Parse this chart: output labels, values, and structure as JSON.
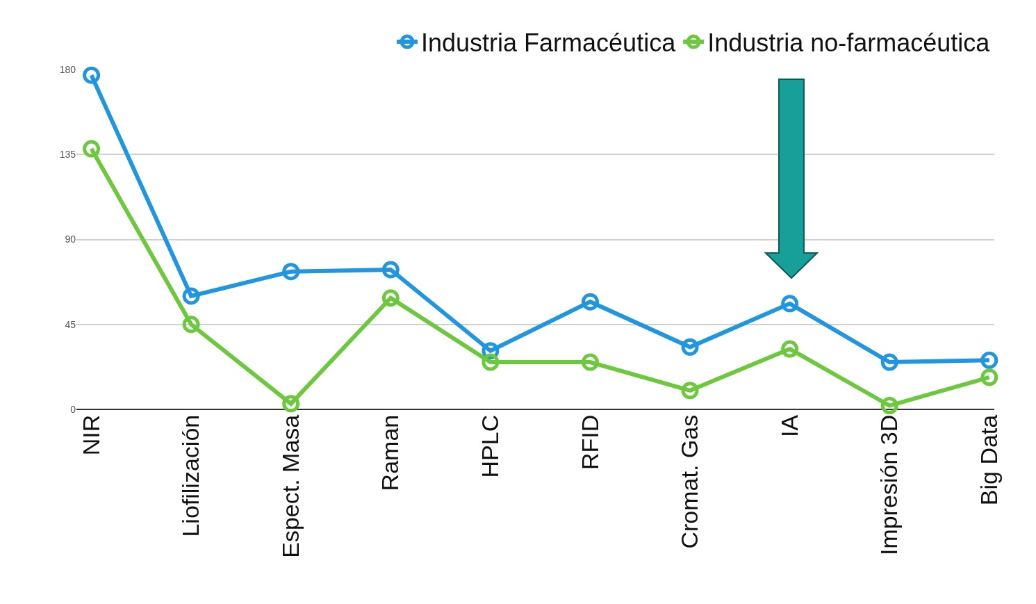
{
  "chart_data": {
    "type": "line",
    "categories": [
      "NIR",
      "Liofilización",
      "Espect. Masa",
      "Raman",
      "HPLC",
      "RFID",
      "Cromat. Gas",
      "IA",
      "Impresión 3D",
      "Big Data"
    ],
    "series": [
      {
        "name": "Industria Farmacéutica",
        "color": "#2196e0",
        "values": [
          177,
          60,
          73,
          74,
          31,
          57,
          33,
          56,
          25,
          26
        ]
      },
      {
        "name": "Industria no-farmacéutica",
        "color": "#6cc83c",
        "values": [
          138,
          45,
          3,
          59,
          25,
          25,
          10,
          32,
          2,
          17
        ]
      }
    ],
    "ylim": [
      0,
      180
    ],
    "yticks": [
      0,
      45,
      90,
      135,
      180
    ],
    "grid": "y",
    "legend": "top right",
    "marker": "circle",
    "line_style": "solid"
  }
}
